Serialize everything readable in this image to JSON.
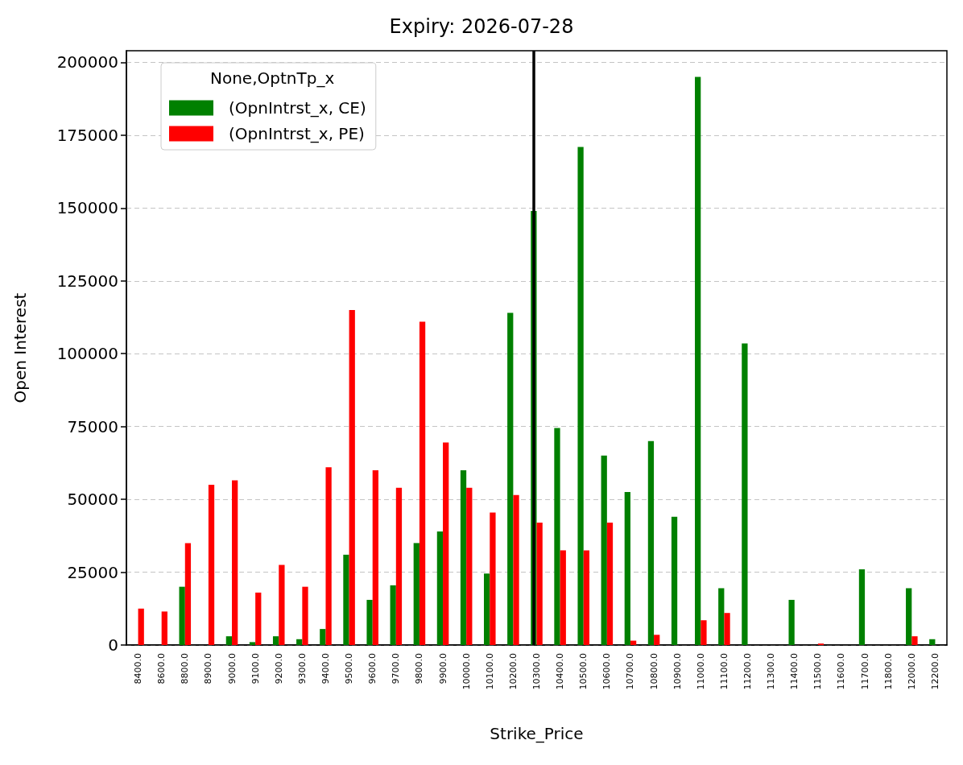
{
  "chart_data": {
    "type": "bar",
    "title": "Expiry: 2026-07-28",
    "xlabel": "Strike_Price",
    "ylabel": "Open Interest",
    "legend_title": "None,OptnTp_x",
    "categories": [
      "8400.0",
      "8600.0",
      "8800.0",
      "8900.0",
      "9000.0",
      "9100.0",
      "9200.0",
      "9300.0",
      "9400.0",
      "9500.0",
      "9600.0",
      "9700.0",
      "9800.0",
      "9900.0",
      "10000.0",
      "10100.0",
      "10200.0",
      "10300.0",
      "10400.0",
      "10500.0",
      "10600.0",
      "10700.0",
      "10800.0",
      "10900.0",
      "11000.0",
      "11100.0",
      "11200.0",
      "11300.0",
      "11400.0",
      "11500.0",
      "11600.0",
      "11700.0",
      "11800.0",
      "12000.0",
      "12200.0"
    ],
    "series": [
      {
        "name": "(OpnIntrst_x, CE)",
        "color": "#008000",
        "values": [
          0,
          0,
          20000,
          0,
          3000,
          1000,
          3000,
          2000,
          5500,
          31000,
          15500,
          20500,
          35000,
          39000,
          60000,
          24500,
          114000,
          149000,
          74500,
          171000,
          65000,
          52500,
          70000,
          44000,
          195000,
          19500,
          103500,
          0,
          15500,
          0,
          0,
          26000,
          0,
          19500,
          2000
        ]
      },
      {
        "name": "(OpnIntrst_x, PE)",
        "color": "#ff0000",
        "values": [
          12500,
          11500,
          35000,
          55000,
          56500,
          18000,
          27500,
          20000,
          61000,
          115000,
          60000,
          54000,
          111000,
          69500,
          54000,
          45500,
          51500,
          42000,
          32500,
          32500,
          42000,
          1500,
          3500,
          0,
          8500,
          11000,
          0,
          0,
          0,
          500,
          0,
          0,
          0,
          3000,
          0
        ]
      }
    ],
    "ylim": [
      0,
      204000
    ],
    "yticks": [
      0,
      25000,
      50000,
      75000,
      100000,
      125000,
      150000,
      175000,
      200000
    ],
    "ref_lines": [
      {
        "axis": "x",
        "value": "10300.0",
        "color": "#000000",
        "line_style": "solid"
      }
    ],
    "grid": "y",
    "legend": "top left"
  }
}
